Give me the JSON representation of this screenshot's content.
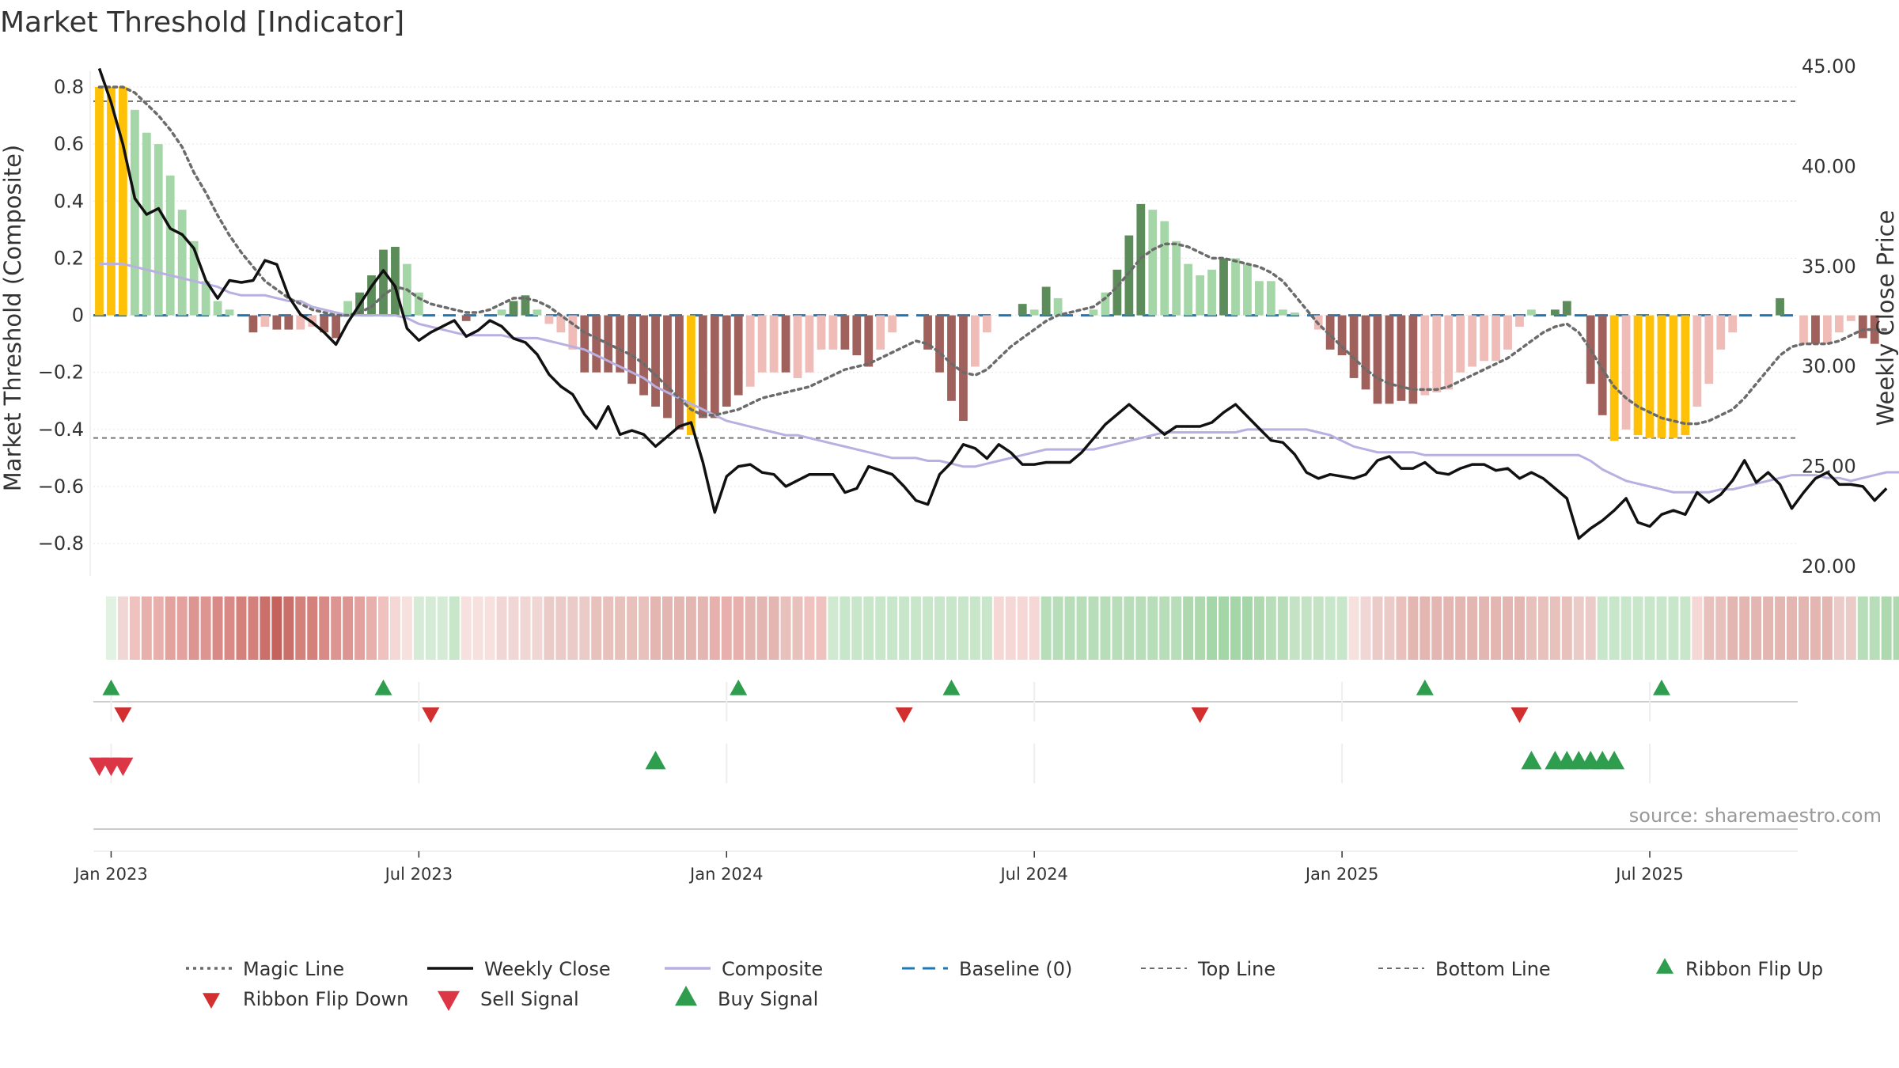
{
  "chart_data": {
    "type": "bar",
    "title": "Market Threshold [Indicator]",
    "ylabel_left": "Market Threshold (Composite)",
    "ylabel_right": "Weekly Close Price",
    "source": "source: sharemaestro.com",
    "ylim_left": [
      -0.88,
      0.8
    ],
    "ylim_right": [
      20,
      45
    ],
    "yticks_left": [
      "0.8",
      "0.6",
      "0.4",
      "0.2",
      "0",
      "−0.2",
      "−0.4",
      "−0.6",
      "−0.8"
    ],
    "yticks_right": [
      "45.00",
      "40.00",
      "35.00",
      "30.00",
      "25.00",
      "20.00"
    ],
    "xticks": [
      "Jan 2023",
      "Jul 2023",
      "Jan 2024",
      "Jul 2024",
      "Jan 2025",
      "Jul 2025"
    ],
    "xlim": [
      0,
      144
    ],
    "tick_weeks": [
      1.5,
      27.5,
      53.5,
      79.5,
      105.5,
      131.5
    ],
    "top_line": 0.75,
    "bottom_line": -0.43,
    "baseline": 0,
    "colors": {
      "yellow": "#FFC107",
      "light_green": "#A5D6A7",
      "dark_green": "#5B8C5A",
      "light_red": "#EFBCB8",
      "dark_red": "#A0615C",
      "weekly_close": "#111111",
      "composite": "#B8B0E0",
      "magic": "#6B6B6B",
      "baseline": "#1F77B4",
      "ribbon_up": "#2E9E4E",
      "ribbon_down": "#D32F2F",
      "sell": "#DC3545",
      "buy": "#2E9E4E"
    },
    "bars": [
      0.8,
      0.8,
      0.8,
      0.72,
      0.64,
      0.6,
      0.49,
      0.37,
      0.26,
      0.12,
      0.05,
      0.02,
      0,
      -0.06,
      -0.04,
      -0.05,
      -0.05,
      -0.05,
      -0.04,
      -0.06,
      -0.08,
      0.05,
      0.08,
      0.14,
      0.23,
      0.24,
      0.18,
      0.08,
      0,
      0,
      0,
      -0.02,
      0,
      0,
      0.02,
      0.05,
      0.07,
      0.02,
      -0.03,
      -0.06,
      -0.12,
      -0.2,
      -0.2,
      -0.2,
      -0.2,
      -0.24,
      -0.28,
      -0.32,
      -0.36,
      -0.4,
      -0.42,
      -0.36,
      -0.36,
      -0.32,
      -0.28,
      -0.25,
      -0.2,
      -0.2,
      -0.2,
      -0.22,
      -0.2,
      -0.12,
      -0.12,
      -0.12,
      -0.14,
      -0.18,
      -0.12,
      -0.06,
      0,
      0,
      -0.12,
      -0.2,
      -0.3,
      -0.37,
      -0.18,
      -0.06,
      0,
      0,
      0.04,
      0.02,
      0.1,
      0.06,
      0,
      0,
      0.02,
      0.08,
      0.16,
      0.28,
      0.39,
      0.37,
      0.33,
      0.26,
      0.18,
      0.14,
      0.16,
      0.2,
      0.2,
      0.18,
      0.12,
      0.12,
      0.02,
      0.01,
      0,
      -0.05,
      -0.12,
      -0.14,
      -0.22,
      -0.26,
      -0.31,
      -0.31,
      -0.3,
      -0.31,
      -0.28,
      -0.27,
      -0.26,
      -0.2,
      -0.18,
      -0.16,
      -0.16,
      -0.12,
      -0.04,
      0.02,
      0,
      0.02,
      0.05,
      0,
      -0.24,
      -0.35,
      -0.44,
      -0.4,
      -0.42,
      -0.43,
      -0.43,
      -0.43,
      -0.42,
      -0.32,
      -0.24,
      -0.12,
      -0.06,
      0,
      0,
      0,
      0.06,
      0,
      -0.1,
      -0.1,
      -0.1,
      -0.06,
      -0.02,
      -0.08,
      -0.1
    ],
    "bar_colors": [
      "yellow",
      "yellow",
      "yellow",
      "light_green",
      "light_green",
      "light_green",
      "light_green",
      "light_green",
      "light_green",
      "light_green",
      "light_green",
      "light_green",
      "light_green",
      "dark_red",
      "light_red",
      "dark_red",
      "dark_red",
      "light_red",
      "light_red",
      "dark_red",
      "dark_red",
      "light_green",
      "dark_green",
      "dark_green",
      "dark_green",
      "dark_green",
      "light_green",
      "light_green",
      "light_green",
      "light_green",
      "light_green",
      "dark_red",
      "light_green",
      "light_green",
      "light_green",
      "dark_green",
      "dark_green",
      "light_green",
      "light_red",
      "light_red",
      "light_red",
      "dark_red",
      "dark_red",
      "dark_red",
      "dark_red",
      "dark_red",
      "dark_red",
      "dark_red",
      "dark_red",
      "dark_red",
      "yellow",
      "dark_red",
      "dark_red",
      "dark_red",
      "dark_red",
      "light_red",
      "light_red",
      "light_red",
      "dark_red",
      "light_red",
      "light_red",
      "light_red",
      "light_red",
      "dark_red",
      "dark_red",
      "dark_red",
      "light_red",
      "light_red",
      "light_red",
      "light_red",
      "dark_red",
      "dark_red",
      "dark_red",
      "dark_red",
      "light_red",
      "light_red",
      "light_green",
      "light_green",
      "dark_green",
      "light_green",
      "dark_green",
      "light_green",
      "light_green",
      "light_green",
      "light_green",
      "light_green",
      "dark_green",
      "dark_green",
      "dark_green",
      "light_green",
      "light_green",
      "light_green",
      "light_green",
      "light_green",
      "light_green",
      "dark_green",
      "light_green",
      "light_green",
      "light_green",
      "light_green",
      "light_green",
      "light_green",
      "light_green",
      "light_red",
      "dark_red",
      "dark_red",
      "dark_red",
      "dark_red",
      "dark_red",
      "dark_red",
      "dark_red",
      "dark_red",
      "light_red",
      "light_red",
      "light_red",
      "light_red",
      "light_red",
      "light_red",
      "light_red",
      "light_red",
      "light_red",
      "light_green",
      "light_green",
      "dark_green",
      "dark_green",
      "light_green",
      "dark_red",
      "dark_red",
      "yellow",
      "light_red",
      "yellow",
      "yellow",
      "yellow",
      "yellow",
      "yellow",
      "light_red",
      "light_red",
      "light_red",
      "light_red",
      "light_green",
      "light_green",
      "light_green",
      "dark_green",
      "light_green",
      "light_red",
      "dark_red",
      "light_red",
      "light_red",
      "light_red",
      "dark_red",
      "dark_red"
    ],
    "weekly_close": [
      44.9,
      43.2,
      41.1,
      38.4,
      37.6,
      37.9,
      36.9,
      36.6,
      35.9,
      34.3,
      33.4,
      34.3,
      34.2,
      34.3,
      35.3,
      35.1,
      33.5,
      32.6,
      32.2,
      31.7,
      31.1,
      32.2,
      33.1,
      34.0,
      34.8,
      34.0,
      31.9,
      31.3,
      31.7,
      32.0,
      32.3,
      31.5,
      31.8,
      32.3,
      32.0,
      31.4,
      31.2,
      30.6,
      29.6,
      29.0,
      28.6,
      27.6,
      26.9,
      28.0,
      26.6,
      26.8,
      26.6,
      26.0,
      26.5,
      27.0,
      27.2,
      25.2,
      22.7,
      24.5,
      25.0,
      25.1,
      24.7,
      24.6,
      24.0,
      24.3,
      24.6,
      24.6,
      24.6,
      23.7,
      23.9,
      25.0,
      24.8,
      24.6,
      24.0,
      23.3,
      23.1,
      24.6,
      25.2,
      26.1,
      25.9,
      25.4,
      26.1,
      25.7,
      25.1,
      25.1,
      25.2,
      25.2,
      25.2,
      25.7,
      26.4,
      27.1,
      27.6,
      28.1,
      27.6,
      27.1,
      26.6,
      27.0,
      27.0,
      27.0,
      27.2,
      27.7,
      28.1,
      27.5,
      26.9,
      26.3,
      26.2,
      25.6,
      24.7,
      24.4,
      24.6,
      24.5,
      24.4,
      24.6,
      25.3,
      25.5,
      24.9,
      24.9,
      25.2,
      24.7,
      24.6,
      24.9,
      25.1,
      25.1,
      24.8,
      24.9,
      24.4,
      24.7,
      24.4,
      23.9,
      23.4,
      21.4,
      21.9,
      22.3,
      22.8,
      23.4,
      22.2,
      22.0,
      22.6,
      22.8,
      22.6,
      23.7,
      23.2,
      23.6,
      24.3,
      25.3,
      24.2,
      24.7,
      24.1,
      22.9,
      23.7,
      24.4,
      24.7,
      24.1,
      24.1,
      24.0,
      23.3,
      23.9
    ],
    "composite": [
      0.18,
      0.18,
      0.18,
      0.17,
      0.16,
      0.15,
      0.14,
      0.13,
      0.12,
      0.11,
      0.1,
      0.08,
      0.07,
      0.07,
      0.07,
      0.06,
      0.05,
      0.05,
      0.03,
      0.02,
      0.01,
      0,
      0,
      0,
      0,
      0,
      -0.01,
      -0.03,
      -0.04,
      -0.05,
      -0.06,
      -0.07,
      -0.07,
      -0.07,
      -0.07,
      -0.08,
      -0.08,
      -0.08,
      -0.09,
      -0.1,
      -0.11,
      -0.12,
      -0.14,
      -0.16,
      -0.18,
      -0.2,
      -0.22,
      -0.25,
      -0.27,
      -0.29,
      -0.31,
      -0.33,
      -0.35,
      -0.37,
      -0.38,
      -0.39,
      -0.4,
      -0.41,
      -0.42,
      -0.42,
      -0.43,
      -0.44,
      -0.45,
      -0.46,
      -0.47,
      -0.48,
      -0.49,
      -0.5,
      -0.5,
      -0.5,
      -0.51,
      -0.51,
      -0.52,
      -0.53,
      -0.53,
      -0.52,
      -0.51,
      -0.5,
      -0.49,
      -0.48,
      -0.47,
      -0.47,
      -0.47,
      -0.47,
      -0.47,
      -0.46,
      -0.45,
      -0.44,
      -0.43,
      -0.42,
      -0.41,
      -0.41,
      -0.41,
      -0.41,
      -0.41,
      -0.41,
      -0.41,
      -0.4,
      -0.4,
      -0.4,
      -0.4,
      -0.4,
      -0.4,
      -0.41,
      -0.42,
      -0.44,
      -0.46,
      -0.47,
      -0.48,
      -0.48,
      -0.48,
      -0.48,
      -0.49,
      -0.49,
      -0.49,
      -0.49,
      -0.49,
      -0.49,
      -0.49,
      -0.49,
      -0.49,
      -0.49,
      -0.49,
      -0.49,
      -0.49,
      -0.49,
      -0.51,
      -0.54,
      -0.56,
      -0.58,
      -0.59,
      -0.6,
      -0.61,
      -0.62,
      -0.62,
      -0.62,
      -0.62,
      -0.61,
      -0.61,
      -0.6,
      -0.59,
      -0.58,
      -0.57,
      -0.56,
      -0.56,
      -0.56,
      -0.57,
      -0.57,
      -0.58,
      -0.57,
      -0.56,
      -0.55,
      -0.55,
      -0.54,
      -0.55
    ],
    "magic_line": [
      0.8,
      0.8,
      0.8,
      0.78,
      0.74,
      0.7,
      0.65,
      0.59,
      0.5,
      0.43,
      0.35,
      0.28,
      0.22,
      0.17,
      0.12,
      0.09,
      0.06,
      0.04,
      0.02,
      0.01,
      0,
      0,
      0.01,
      0.03,
      0.07,
      0.1,
      0.09,
      0.06,
      0.04,
      0.03,
      0.02,
      0.01,
      0.01,
      0.02,
      0.04,
      0.06,
      0.06,
      0.05,
      0.03,
      0,
      -0.03,
      -0.06,
      -0.08,
      -0.1,
      -0.12,
      -0.14,
      -0.17,
      -0.21,
      -0.25,
      -0.29,
      -0.33,
      -0.35,
      -0.35,
      -0.34,
      -0.33,
      -0.31,
      -0.29,
      -0.28,
      -0.27,
      -0.26,
      -0.25,
      -0.23,
      -0.21,
      -0.19,
      -0.18,
      -0.17,
      -0.15,
      -0.13,
      -0.11,
      -0.09,
      -0.1,
      -0.13,
      -0.17,
      -0.2,
      -0.21,
      -0.19,
      -0.15,
      -0.11,
      -0.08,
      -0.05,
      -0.02,
      0,
      0.01,
      0.02,
      0.03,
      0.06,
      0.1,
      0.15,
      0.2,
      0.23,
      0.25,
      0.25,
      0.24,
      0.22,
      0.2,
      0.2,
      0.19,
      0.18,
      0.17,
      0.15,
      0.12,
      0.07,
      0.02,
      -0.03,
      -0.07,
      -0.11,
      -0.15,
      -0.19,
      -0.22,
      -0.24,
      -0.25,
      -0.26,
      -0.26,
      -0.26,
      -0.25,
      -0.23,
      -0.21,
      -0.19,
      -0.17,
      -0.15,
      -0.12,
      -0.09,
      -0.06,
      -0.04,
      -0.03,
      -0.06,
      -0.12,
      -0.19,
      -0.25,
      -0.29,
      -0.32,
      -0.34,
      -0.36,
      -0.37,
      -0.38,
      -0.38,
      -0.37,
      -0.35,
      -0.33,
      -0.29,
      -0.24,
      -0.19,
      -0.14,
      -0.11,
      -0.1,
      -0.1,
      -0.1,
      -0.09,
      -0.07,
      -0.05,
      -0.05,
      -0.05
    ],
    "ribbon": [
      "#FFFFFF",
      "#E2F2E2",
      "#F0D6D4",
      "#EFC2BF",
      "#E8B0AC",
      "#E8B0AC",
      "#E3A29E",
      "#E3A29E",
      "#DD9592",
      "#DD9592",
      "#D98A86",
      "#D98A86",
      "#D4807B",
      "#D4807B",
      "#CB6F6A",
      "#C5625C",
      "#CB6F6A",
      "#D4807B",
      "#D4807B",
      "#D98A86",
      "#DD9592",
      "#DD9592",
      "#E3A29E",
      "#E8B0AC",
      "#EFC2BF",
      "#F5D7D5",
      "#F7E1DF",
      "#D5EBD5",
      "#D5EBD5",
      "#D5EBD5",
      "#C8E6C9",
      "#F7E1DF",
      "#F7E1DF",
      "#F7E1DF",
      "#F0D6D4",
      "#F0D6D4",
      "#F0D6D4",
      "#F0D6D4",
      "#EBCBC8",
      "#EBCBC8",
      "#EBCBC8",
      "#EBCBC8",
      "#E8C0BC",
      "#E8C0BC",
      "#E8C0BC",
      "#E8C0BC",
      "#E8C0BC",
      "#E3B6B2",
      "#E3B6B2",
      "#E3B6B2",
      "#E3B6B2",
      "#E3B6B2",
      "#E8B0AC",
      "#E8B0AC",
      "#E8B0AC",
      "#E3B6B2",
      "#E3B6B2",
      "#E3B6B2",
      "#E8C0BC",
      "#E8C0BC",
      "#EFC2BF",
      "#EFC2BF",
      "#D0EAD1",
      "#C8E6C9",
      "#C8E6C9",
      "#C8E6C9",
      "#C8E6C9",
      "#C8E6C9",
      "#C8E6C9",
      "#C8E6C9",
      "#C8E6C9",
      "#C8E6C9",
      "#C8E6C9",
      "#C8E6C9",
      "#C8E6C9",
      "#C8E6C9",
      "#F5D7D5",
      "#F5D7D5",
      "#F5D7D5",
      "#F5D7D5",
      "#B8DEB9",
      "#B8DEB9",
      "#B8DEB9",
      "#B8DEB9",
      "#B8DEB9",
      "#B8DEB9",
      "#B8DEB9",
      "#B8DEB9",
      "#B8DEB9",
      "#B8DEB9",
      "#B8DEB9",
      "#B8DEB9",
      "#AED9AF",
      "#AED9AF",
      "#A5D6A7",
      "#A5D6A7",
      "#A5D6A7",
      "#A5D6A7",
      "#AED9AF",
      "#B8DEB9",
      "#B8DEB9",
      "#C3E3C4",
      "#C3E3C4",
      "#C3E3C4",
      "#C8E6C9",
      "#C8E6C9",
      "#F7E1DF",
      "#F0D6D4",
      "#EBCBC8",
      "#EBCBC8",
      "#E8C0BC",
      "#E3B6B2",
      "#E3B6B2",
      "#E3B6B2",
      "#E3B6B2",
      "#E3B6B2",
      "#E3B6B2",
      "#E3B6B2",
      "#E3B6B2",
      "#E3B6B2",
      "#E3B6B2",
      "#E8C0BC",
      "#E8C0BC",
      "#E8C0BC",
      "#E8C0BC",
      "#EBCBC8",
      "#EBCBC8",
      "#C8E6C9",
      "#C8E6C9",
      "#C8E6C9",
      "#C8E6C9",
      "#C8E6C9",
      "#C8E6C9",
      "#C8E6C9",
      "#C8E6C9",
      "#F5D7D5",
      "#E8C0BC",
      "#E8C0BC",
      "#E3B6B2",
      "#E3B6B2",
      "#E3B6B2",
      "#E3B6B2",
      "#E3B6B2",
      "#E3B6B2",
      "#E3B6B2",
      "#E3B6B2",
      "#E3B6B2",
      "#EBCBC8",
      "#EBCBC8",
      "#B8DEB9",
      "#B8DEB9",
      "#AED9AF",
      "#AED9AF",
      "#AED9AF",
      "#AED9AF",
      "#AED9AF",
      "#B8DEB9",
      "#B8DEB9",
      "#B8DEB9",
      "#B8DEB9",
      "#B8DEB9",
      "#B8DEB9"
    ],
    "ribbon_flip_up_weeks": [
      1,
      24,
      54,
      72,
      112,
      132
    ],
    "ribbon_flip_down_weeks": [
      2,
      28,
      68,
      93,
      120
    ],
    "sell_signal_weeks": [
      0,
      1,
      2
    ],
    "buy_signal_weeks": [
      47,
      121,
      123,
      124,
      125,
      126,
      127,
      128
    ],
    "legend": [
      {
        "label": "Magic Line",
        "kind": "dotted",
        "color": "magic"
      },
      {
        "label": "Weekly Close",
        "kind": "solid",
        "color": "weekly_close"
      },
      {
        "label": "Composite",
        "kind": "solid",
        "color": "composite"
      },
      {
        "label": "Baseline (0)",
        "kind": "dashed",
        "color": "baseline"
      },
      {
        "label": "Top Line",
        "kind": "thindash",
        "color": "magic"
      },
      {
        "label": "Bottom Line",
        "kind": "thindash",
        "color": "magic"
      },
      {
        "label": "Ribbon Flip Up",
        "kind": "tri-up",
        "color": "ribbon_up"
      },
      {
        "label": "Ribbon Flip Down",
        "kind": "tri-down",
        "color": "ribbon_down"
      },
      {
        "label": "Sell Signal",
        "kind": "tri-down-big",
        "color": "sell"
      },
      {
        "label": "Buy Signal",
        "kind": "tri-up-big",
        "color": "buy"
      }
    ]
  }
}
